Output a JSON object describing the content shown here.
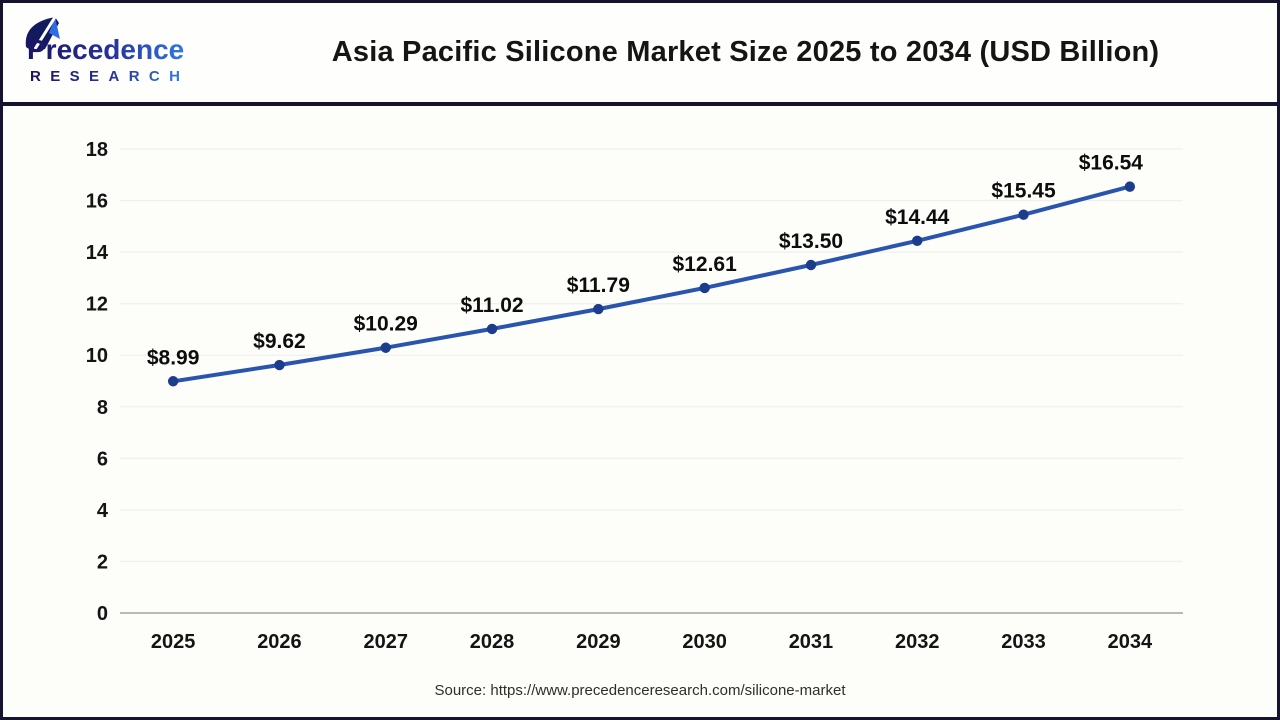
{
  "logo": {
    "name": "Precedence",
    "sub": "RESEARCH",
    "gradient_start": "#1b1464",
    "gradient_mid": "#27339b",
    "gradient_end": "#3079df"
  },
  "footer": {
    "source": "Source: https://www.precedenceresearch.com/silicone-market"
  },
  "chart_data": {
    "type": "line",
    "title": "Asia Pacific Silicone Market Size 2025 to 2034 (USD Billion)",
    "categories": [
      "2025",
      "2026",
      "2027",
      "2028",
      "2029",
      "2030",
      "2031",
      "2032",
      "2033",
      "2034"
    ],
    "series": [
      {
        "name": "Market Size (USD Billion)",
        "values": [
          8.99,
          9.62,
          10.29,
          11.02,
          11.79,
          12.61,
          13.5,
          14.44,
          15.45,
          16.54
        ]
      }
    ],
    "point_labels": [
      "$8.99",
      "$9.62",
      "$10.29",
      "$11.02",
      "$11.79",
      "$12.61",
      "$13.50",
      "$14.44",
      "$15.45",
      "$16.54"
    ],
    "xlabel": "",
    "ylabel": "",
    "ylim": [
      0,
      18
    ],
    "yticks": [
      0,
      2,
      4,
      6,
      8,
      10,
      12,
      14,
      16,
      18
    ],
    "grid": "faint-horizontal",
    "legend": "none",
    "line_color": "#2a55ae",
    "marker_color": "#1e3c8c",
    "axis_line_color": "#b9b9b4",
    "grid_color": "#f0f0ec"
  }
}
